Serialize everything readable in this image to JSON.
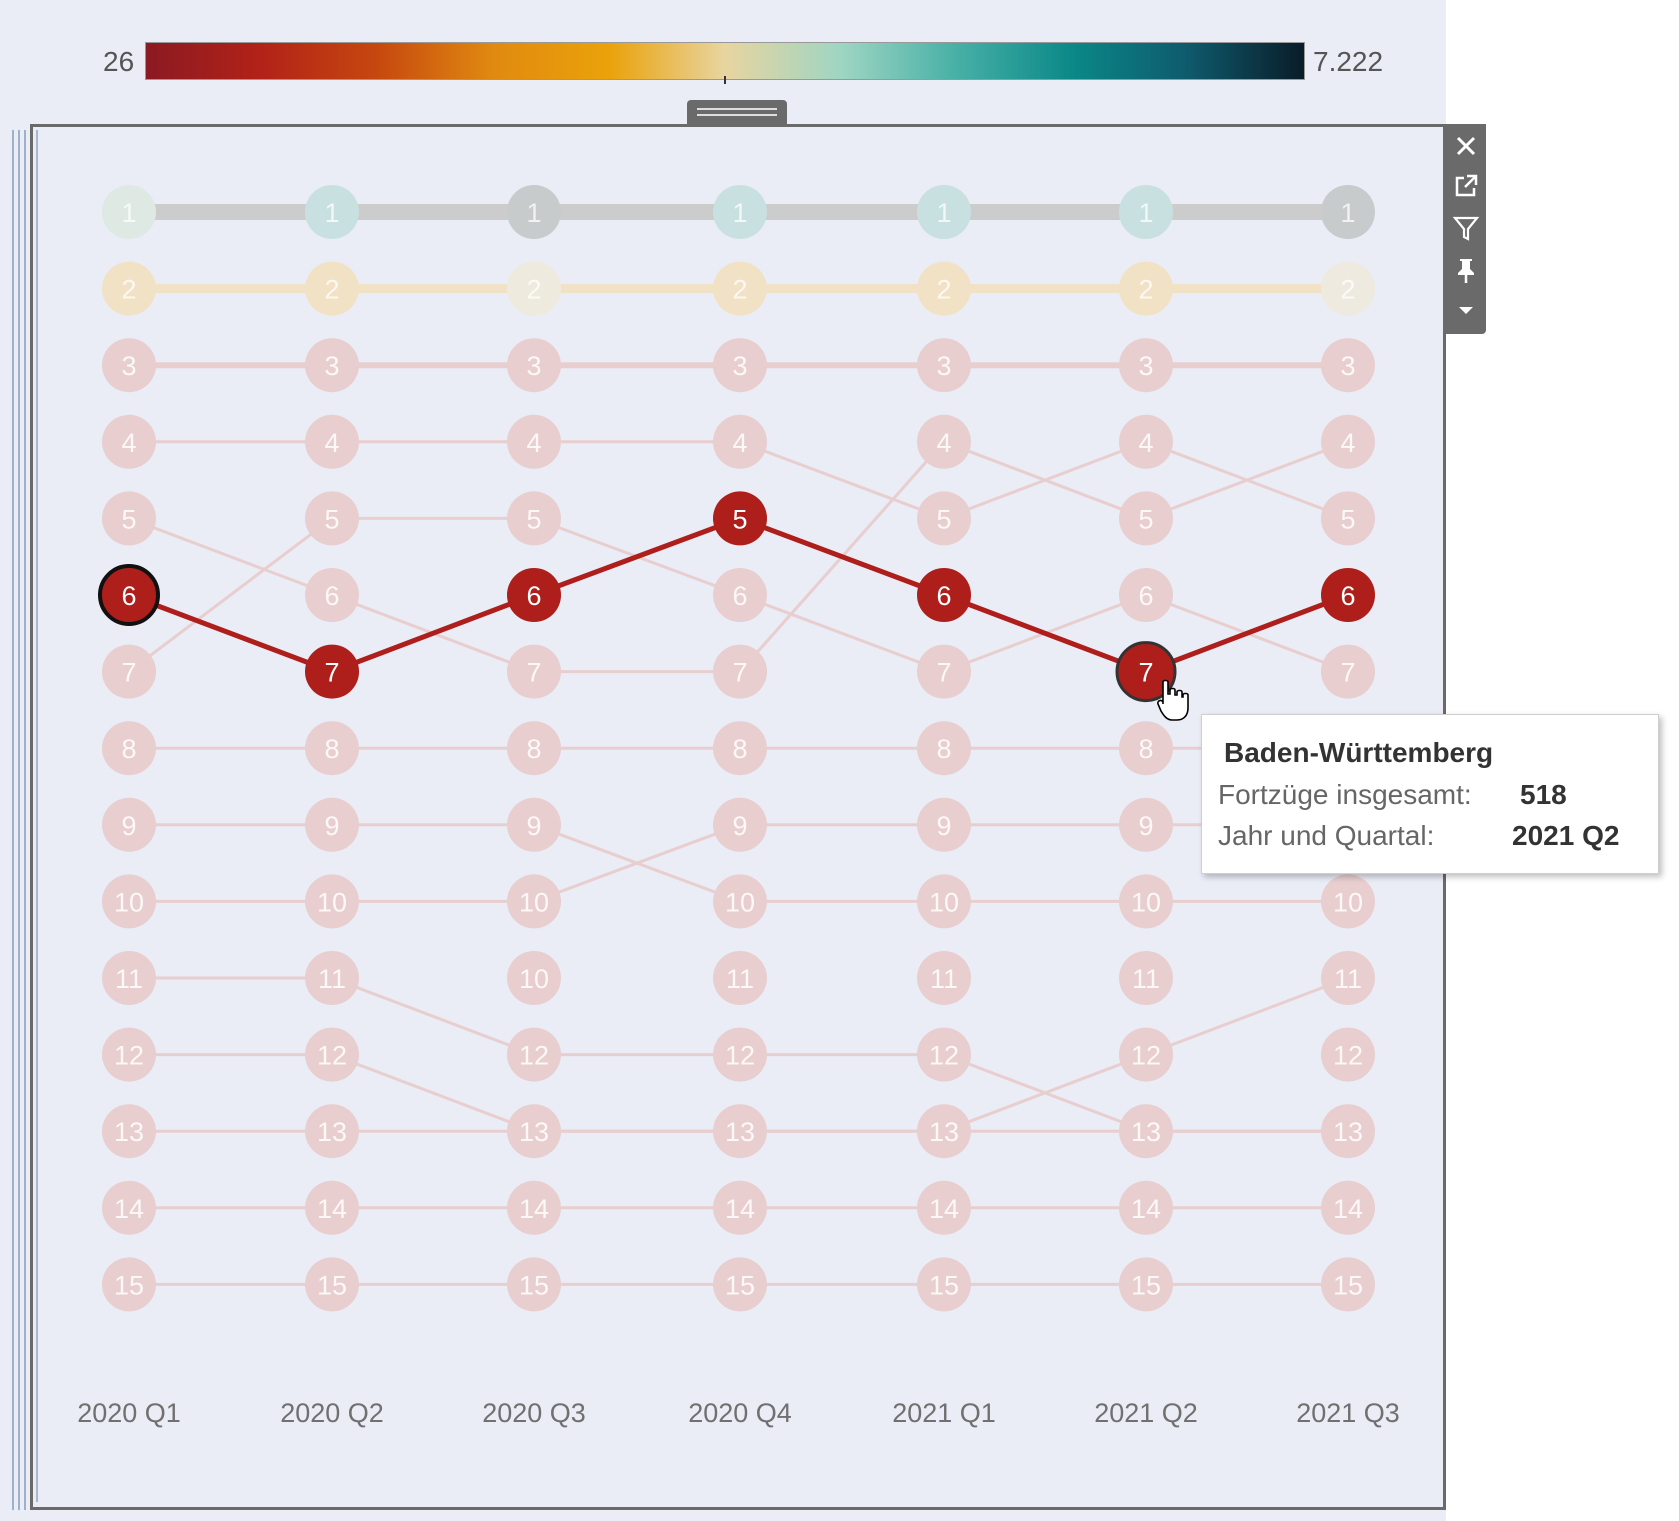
{
  "legend": {
    "min_label": "26",
    "max_label": "7.222",
    "gradient": [
      "#8b1a22",
      "#b22218",
      "#c6480f",
      "#e08a10",
      "#eaa20a",
      "#e8d5a0",
      "#9fd5c3",
      "#47b0a6",
      "#0b8888",
      "#0e5a6c",
      "#0a1c28"
    ]
  },
  "toolbar": {
    "icons": [
      "close-icon",
      "popout-icon",
      "filter-icon",
      "pin-icon",
      "dropdown-arrow-icon"
    ]
  },
  "chart_data": {
    "type": "bump",
    "x": [
      "2020 Q1",
      "2020 Q2",
      "2020 Q3",
      "2020 Q4",
      "2021 Q1",
      "2021 Q2",
      "2021 Q3"
    ],
    "ranks": [
      1,
      2,
      3,
      4,
      5,
      6,
      7,
      8,
      9,
      10,
      11,
      12,
      13,
      14,
      15
    ],
    "nodes": [
      [
        "1",
        "2",
        "3",
        "4",
        "5",
        "6",
        "7",
        "8",
        "9",
        "10",
        "11",
        "12",
        "13",
        "14",
        "15"
      ],
      [
        "1",
        "2",
        "3",
        "4",
        "5",
        "6",
        "7",
        "8",
        "9",
        "10",
        "11",
        "12",
        "13",
        "14",
        "15"
      ],
      [
        "1",
        "2",
        "3",
        "4",
        "5",
        "6",
        "7",
        "8",
        "9",
        "10",
        "10",
        "12",
        "13",
        "14",
        "15"
      ],
      [
        "1",
        "2",
        "3",
        "4",
        "5",
        "6",
        "7",
        "8",
        "9",
        "10",
        "11",
        "12",
        "13",
        "14",
        "15"
      ],
      [
        "1",
        "2",
        "3",
        "4",
        "5",
        "6",
        "7",
        "8",
        "9",
        "10",
        "11",
        "12",
        "13",
        "14",
        "15"
      ],
      [
        "1",
        "2",
        "3",
        "4",
        "5",
        "6",
        "7",
        "8",
        "9",
        "10",
        "11",
        "12",
        "13",
        "14",
        "15"
      ],
      [
        "1",
        "2",
        "3",
        "4",
        "5",
        "6",
        "7",
        "8",
        "9",
        "10",
        "11",
        "12",
        "13",
        "14",
        "15"
      ]
    ],
    "line_rows": [
      [
        0,
        0,
        0,
        0,
        0,
        0,
        0
      ],
      [
        1,
        1,
        1,
        1,
        1,
        1,
        1
      ],
      [
        2,
        2,
        2,
        2,
        2,
        2,
        2
      ],
      [
        3,
        3,
        3,
        3,
        4,
        3,
        4
      ],
      [
        4,
        5,
        6,
        6,
        3,
        4,
        3
      ],
      [
        6,
        4,
        4,
        5,
        6,
        5,
        6
      ],
      [
        7,
        7,
        7,
        7,
        7,
        7,
        7
      ],
      [
        8,
        8,
        8,
        9,
        9,
        9,
        9
      ],
      [
        9,
        9,
        9,
        8,
        8,
        8,
        8
      ],
      [
        11,
        11,
        12,
        12,
        12,
        11,
        10
      ],
      [
        10,
        10,
        11,
        11,
        11,
        12,
        12
      ],
      [
        12,
        12,
        12,
        12,
        12,
        12,
        12
      ],
      [
        13,
        13,
        13,
        13,
        13,
        13,
        13
      ],
      [
        14,
        14,
        14,
        14,
        14,
        14,
        14
      ]
    ],
    "line_base_colors": [
      "#cccccc",
      "#f2e2c5",
      "#e8cece",
      "#e8cece",
      "#e8cece",
      "#e8cece",
      "#e8cece",
      "#e8cece",
      "#e8cece",
      "#e8cece",
      "#e8cece",
      "#e8cece",
      "#e8cece",
      "#e8cece"
    ],
    "node_colors_by_row": [
      "#cfe0e0",
      "#f1e4c7",
      "#e8cece",
      "#e8cece",
      "#e8cece",
      "#e8cece",
      "#e8cece",
      "#e8cece",
      "#e8cece",
      "#e8cece",
      "#e8cece",
      "#e8cece",
      "#e8cece",
      "#e8cece",
      "#e8cece"
    ],
    "row1_colors": [
      "#dfe9e4",
      "#c9e0e1",
      "#c8cbcc",
      "#c9e0e1",
      "#c9e0e1",
      "#c9e0e1",
      "#c8cbcc"
    ],
    "row2_colors": [
      "#f2e2c5",
      "#f2e2c5",
      "#efeade",
      "#f2e2c5",
      "#f2e2c5",
      "#f2e2c5",
      "#eeeadf"
    ],
    "highlight": {
      "series": "Baden-Württemberg",
      "ranks": [
        6,
        7,
        6,
        5,
        6,
        7,
        6
      ],
      "color": "#ae1f1c",
      "hovered_index": 5,
      "outlined_index": 0
    }
  },
  "tooltip": {
    "title": "Baden-Württemberg",
    "rows": [
      {
        "key": "Fortzüge insgesamt:",
        "value": "518"
      },
      {
        "key": "Jahr und Quartal:",
        "value": "2021 Q2"
      }
    ]
  }
}
